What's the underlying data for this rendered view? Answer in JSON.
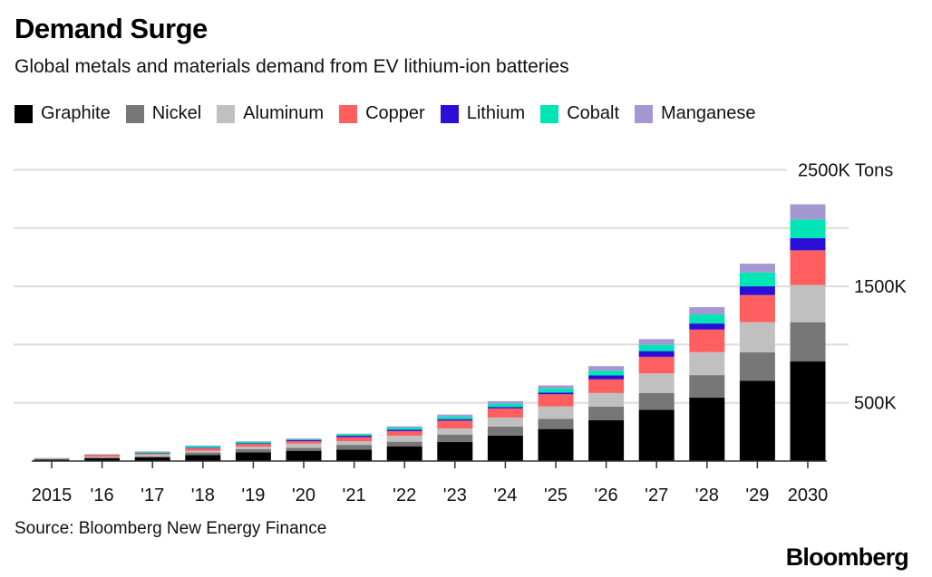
{
  "chart_data": {
    "type": "bar",
    "stacked": true,
    "title": "Demand Surge",
    "subtitle": "Global metals and materials demand from EV lithium-ion batteries",
    "categories": [
      "2015",
      "'16",
      "'17",
      "'18",
      "'19",
      "'20",
      "'21",
      "'22",
      "'23",
      "'24",
      "'25",
      "'26",
      "'27",
      "'28",
      "'29",
      "2030"
    ],
    "series": [
      {
        "name": "Graphite",
        "color": "#000000",
        "values": [
          13,
          23,
          31,
          52,
          75,
          88,
          98,
          127,
          163,
          218,
          275,
          350,
          440,
          544,
          690,
          855
        ]
      },
      {
        "name": "Nickel",
        "color": "#777777",
        "values": [
          5,
          8,
          10,
          21,
          26,
          26,
          41,
          39,
          65,
          78,
          88,
          117,
          145,
          194,
          243,
          337
        ]
      },
      {
        "name": "Aluminum",
        "color": "#c0c0c0",
        "values": [
          3,
          8,
          16,
          16,
          23,
          36,
          31,
          52,
          52,
          78,
          106,
          117,
          168,
          197,
          259,
          319
        ]
      },
      {
        "name": "Copper",
        "color": "#ff5f5f",
        "values": [
          3,
          16,
          10,
          21,
          23,
          21,
          34,
          39,
          67,
          78,
          104,
          117,
          142,
          194,
          233,
          298
        ]
      },
      {
        "name": "Lithium",
        "color": "#2a0fd8",
        "values": [
          1,
          1,
          3,
          5,
          5,
          10,
          13,
          13,
          13,
          13,
          16,
          34,
          49,
          52,
          75,
          104
        ]
      },
      {
        "name": "Cobalt",
        "color": "#00e5b5",
        "values": [
          1,
          2,
          10,
          13,
          13,
          8,
          13,
          18,
          23,
          28,
          34,
          41,
          54,
          78,
          119,
          161
        ]
      },
      {
        "name": "Manganese",
        "color": "#a497d2",
        "values": [
          0,
          1,
          3,
          5,
          5,
          5,
          5,
          10,
          16,
          21,
          26,
          39,
          49,
          62,
          75,
          130
        ]
      }
    ],
    "yticks": [
      {
        "value": 2500,
        "label": "2500K Tons"
      },
      {
        "value": 2000,
        "label": ""
      },
      {
        "value": 1500,
        "label": "1500K"
      },
      {
        "value": 1000,
        "label": ""
      },
      {
        "value": 500,
        "label": "500K"
      }
    ],
    "ylim": [
      0,
      2500
    ],
    "ylabel": "Thousand tons",
    "grid": true,
    "legend": "top-left",
    "source": "Source: Bloomberg New Energy Finance",
    "brand": "Bloomberg"
  }
}
